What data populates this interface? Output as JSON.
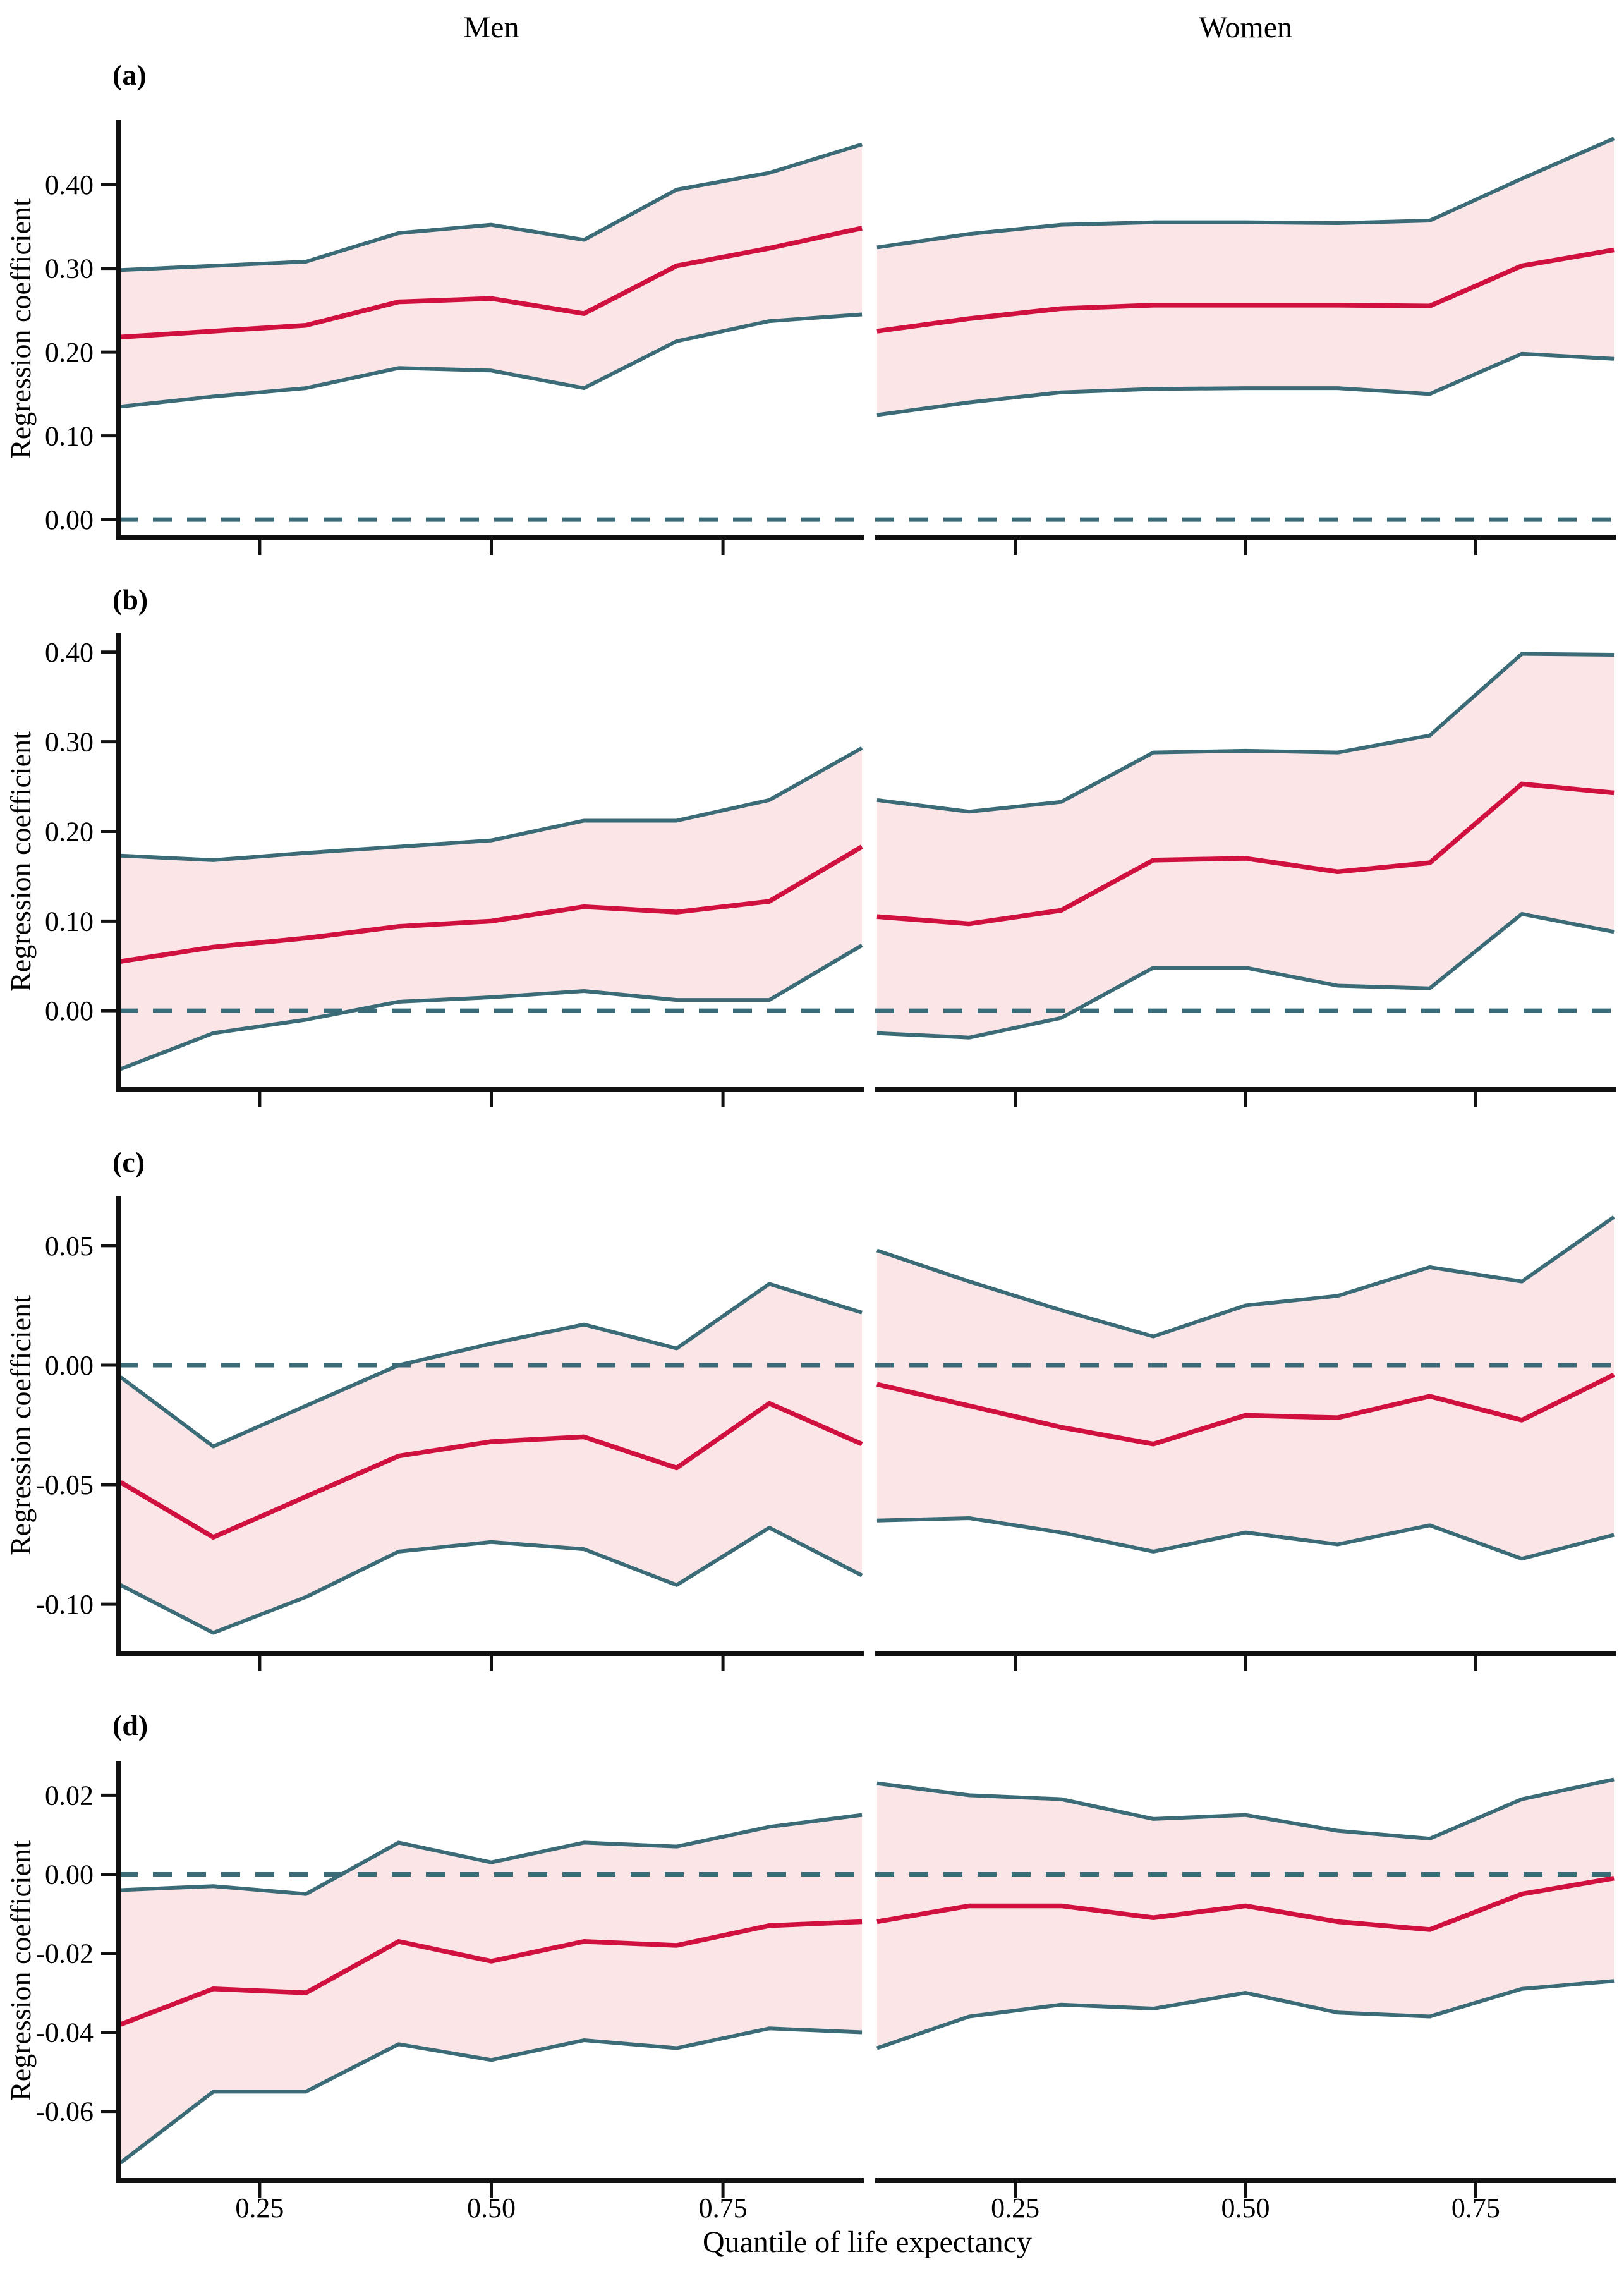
{
  "figure": {
    "column_titles": [
      "Men",
      "Women"
    ],
    "x_axis_title": "Quantile of life expectancy",
    "y_axis_title": "Regression coefficient"
  },
  "colors": {
    "coefficient_line": "#d0103e",
    "band_border": "#3a6b77",
    "band_fill": "#fce5e7",
    "zero_line": "#3a6b77",
    "axis": "#111111",
    "text": "#000000"
  },
  "chart_data": {
    "type": "line",
    "title": "",
    "xlabel": "Quantile of life expectancy",
    "ylabel": "Regression coefficient",
    "facets": [
      "Men",
      "Women"
    ],
    "x": [
      0.1,
      0.2,
      0.3,
      0.4,
      0.5,
      0.6,
      0.7,
      0.8,
      0.9
    ],
    "xlim": [
      0.098,
      0.902
    ],
    "x_ticks": [
      0.25,
      0.5,
      0.75
    ],
    "x_tick_labels": [
      "0.25",
      "0.50",
      "0.75"
    ],
    "legend": "none",
    "grid": false,
    "rows": [
      {
        "label": "(a)",
        "ylim": [
          -0.021,
          0.477
        ],
        "y_ticks": [
          0.0,
          0.1,
          0.2,
          0.3,
          0.4
        ],
        "y_tick_labels": [
          "0.00",
          "0.10",
          "0.20",
          "0.30",
          "0.40"
        ],
        "panels": [
          {
            "facet": "Men",
            "mid": [
              0.218,
              0.225,
              0.232,
              0.26,
              0.264,
              0.246,
              0.303,
              0.324,
              0.348
            ],
            "upper": [
              0.298,
              0.303,
              0.308,
              0.342,
              0.352,
              0.334,
              0.394,
              0.414,
              0.448
            ],
            "lower": [
              0.135,
              0.147,
              0.157,
              0.181,
              0.178,
              0.157,
              0.213,
              0.237,
              0.245
            ]
          },
          {
            "facet": "Women",
            "mid": [
              0.225,
              0.24,
              0.252,
              0.256,
              0.256,
              0.256,
              0.255,
              0.303,
              0.322
            ],
            "upper": [
              0.325,
              0.341,
              0.352,
              0.355,
              0.355,
              0.354,
              0.357,
              0.407,
              0.455
            ],
            "lower": [
              0.125,
              0.14,
              0.152,
              0.156,
              0.157,
              0.157,
              0.15,
              0.198,
              0.192
            ]
          }
        ]
      },
      {
        "label": "(b)",
        "ylim": [
          -0.088,
          0.421
        ],
        "y_ticks": [
          0.0,
          0.1,
          0.2,
          0.3,
          0.4
        ],
        "y_tick_labels": [
          "0.00",
          "0.10",
          "0.20",
          "0.30",
          "0.40"
        ],
        "panels": [
          {
            "facet": "Men",
            "mid": [
              0.055,
              0.071,
              0.081,
              0.094,
              0.1,
              0.116,
              0.11,
              0.122,
              0.183
            ],
            "upper": [
              0.173,
              0.168,
              0.176,
              0.183,
              0.19,
              0.212,
              0.212,
              0.235,
              0.293
            ],
            "lower": [
              -0.065,
              -0.025,
              -0.01,
              0.01,
              0.015,
              0.022,
              0.012,
              0.012,
              0.073
            ]
          },
          {
            "facet": "Women",
            "mid": [
              0.105,
              0.097,
              0.112,
              0.168,
              0.17,
              0.155,
              0.165,
              0.253,
              0.243
            ],
            "upper": [
              0.235,
              0.222,
              0.233,
              0.288,
              0.29,
              0.288,
              0.307,
              0.398,
              0.397
            ],
            "lower": [
              -0.025,
              -0.03,
              -0.008,
              0.048,
              0.048,
              0.028,
              0.025,
              0.108,
              0.088
            ]
          }
        ]
      },
      {
        "label": "(c)",
        "ylim": [
          -0.1206,
          0.0706
        ],
        "y_ticks": [
          -0.1,
          -0.05,
          0.0,
          0.05
        ],
        "y_tick_labels": [
          "-0.10",
          "-0.05",
          "0.00",
          "0.05"
        ],
        "panels": [
          {
            "facet": "Men",
            "mid": [
              -0.049,
              -0.072,
              -0.055,
              -0.038,
              -0.032,
              -0.03,
              -0.043,
              -0.016,
              -0.033
            ],
            "upper": [
              -0.005,
              -0.034,
              -0.017,
              0.0,
              0.009,
              0.017,
              0.007,
              0.034,
              0.022
            ],
            "lower": [
              -0.092,
              -0.112,
              -0.097,
              -0.078,
              -0.074,
              -0.077,
              -0.092,
              -0.068,
              -0.088
            ]
          },
          {
            "facet": "Women",
            "mid": [
              -0.008,
              -0.017,
              -0.026,
              -0.033,
              -0.021,
              -0.022,
              -0.013,
              -0.023,
              -0.004
            ],
            "upper": [
              0.048,
              0.035,
              0.023,
              0.012,
              0.025,
              0.029,
              0.041,
              0.035,
              0.062
            ],
            "lower": [
              -0.065,
              -0.064,
              -0.07,
              -0.078,
              -0.07,
              -0.075,
              -0.067,
              -0.081,
              -0.071
            ]
          }
        ]
      },
      {
        "label": "(d)",
        "ylim": [
          -0.0775,
          0.0287
        ],
        "y_ticks": [
          -0.06,
          -0.04,
          -0.02,
          0.0,
          0.02
        ],
        "y_tick_labels": [
          "-0.06",
          "-0.04",
          "-0.02",
          "0.00",
          "0.02"
        ],
        "panels": [
          {
            "facet": "Men",
            "mid": [
              -0.038,
              -0.029,
              -0.03,
              -0.017,
              -0.022,
              -0.017,
              -0.018,
              -0.013,
              -0.012
            ],
            "upper": [
              -0.004,
              -0.003,
              -0.005,
              0.008,
              0.003,
              0.008,
              0.007,
              0.012,
              0.015
            ],
            "lower": [
              -0.073,
              -0.055,
              -0.055,
              -0.043,
              -0.047,
              -0.042,
              -0.044,
              -0.039,
              -0.04
            ]
          },
          {
            "facet": "Women",
            "mid": [
              -0.012,
              -0.008,
              -0.008,
              -0.011,
              -0.008,
              -0.012,
              -0.014,
              -0.005,
              -0.001
            ],
            "upper": [
              0.023,
              0.02,
              0.019,
              0.014,
              0.015,
              0.011,
              0.009,
              0.019,
              0.024
            ],
            "lower": [
              -0.044,
              -0.036,
              -0.033,
              -0.034,
              -0.03,
              -0.035,
              -0.036,
              -0.029,
              -0.027
            ]
          }
        ]
      }
    ]
  }
}
